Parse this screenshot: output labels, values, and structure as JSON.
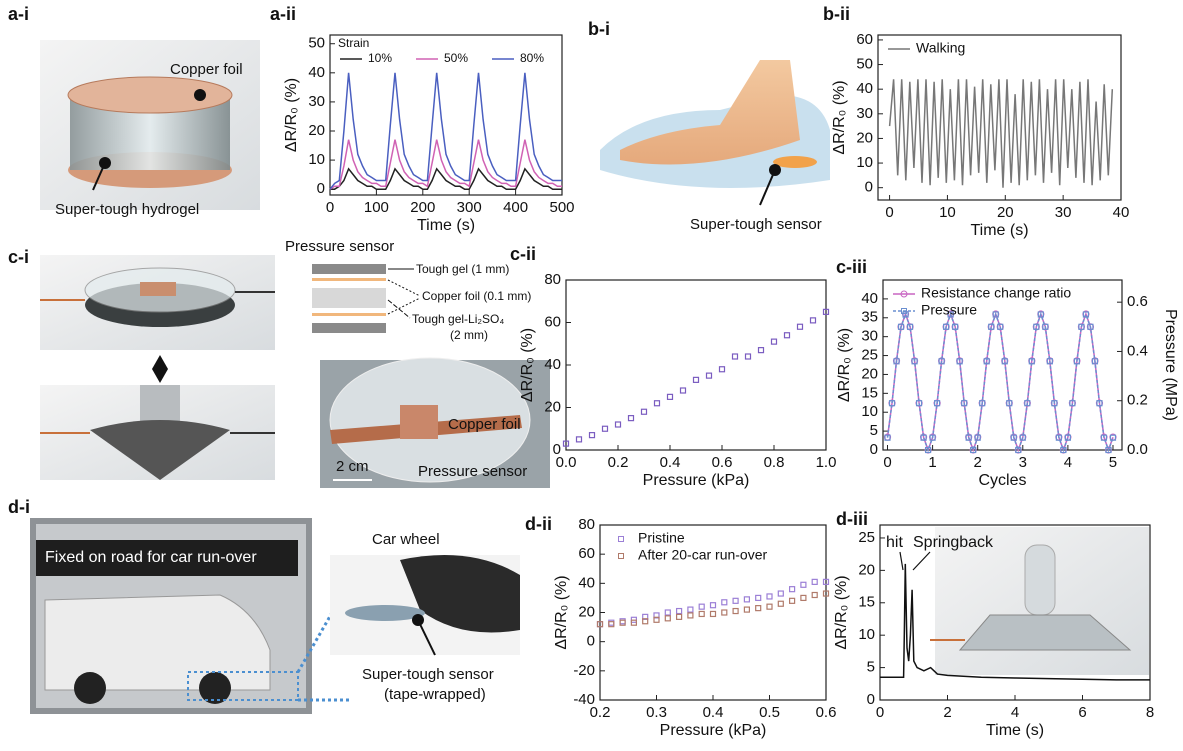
{
  "chart_data": [
    {
      "type": "line",
      "panel": "a-ii",
      "xlabel": "Time (s)",
      "ylabel": "ΔR/R₀ (%)",
      "legend_title": "Strain",
      "legend": "upper left",
      "xlim": [
        0,
        500
      ],
      "ylim": [
        -2,
        53
      ],
      "xticks": [
        0,
        100,
        200,
        300,
        400,
        500
      ],
      "yticks": [
        0,
        10,
        20,
        30,
        40,
        50
      ],
      "x": [
        0,
        10,
        20,
        30,
        40,
        50,
        60,
        70,
        80,
        90,
        100,
        110,
        120,
        130,
        140,
        150,
        160,
        170,
        180,
        190,
        200,
        210,
        220,
        230,
        240,
        250,
        260,
        270,
        280,
        290,
        300,
        310,
        320,
        330,
        340,
        350,
        360,
        370,
        380,
        390,
        400,
        410,
        420,
        430,
        440,
        450,
        460,
        470,
        480,
        490,
        500
      ],
      "series": [
        {
          "name": "10%",
          "color": "#222222",
          "values": [
            0,
            0,
            1,
            3,
            7,
            5,
            3,
            2,
            1,
            1,
            0,
            0,
            0,
            3,
            7,
            5,
            3,
            2,
            1,
            1,
            0,
            0,
            3,
            7,
            5,
            3,
            2,
            1,
            1,
            0,
            0,
            3,
            7,
            5,
            3,
            2,
            1,
            1,
            0,
            0,
            0,
            3,
            7,
            5,
            3,
            2,
            1,
            1,
            0,
            0,
            0
          ]
        },
        {
          "name": "50%",
          "color": "#d062b4",
          "values": [
            0,
            1,
            1,
            8,
            17,
            10,
            6,
            4,
            3,
            2,
            2,
            1,
            1,
            9,
            17,
            10,
            6,
            4,
            3,
            2,
            2,
            1,
            9,
            17,
            10,
            6,
            4,
            3,
            2,
            2,
            1,
            9,
            17,
            10,
            6,
            4,
            3,
            2,
            2,
            1,
            1,
            9,
            17,
            10,
            6,
            4,
            3,
            2,
            2,
            1,
            1
          ]
        },
        {
          "name": "80%",
          "color": "#4a5fc0",
          "values": [
            0,
            2,
            3,
            20,
            40,
            24,
            12,
            8,
            5,
            4,
            3,
            3,
            3,
            22,
            40,
            24,
            12,
            8,
            5,
            4,
            3,
            3,
            22,
            40,
            24,
            12,
            8,
            5,
            4,
            3,
            3,
            22,
            40,
            24,
            12,
            8,
            5,
            4,
            3,
            3,
            3,
            22,
            40,
            24,
            12,
            8,
            5,
            4,
            3,
            3,
            3
          ]
        }
      ]
    },
    {
      "type": "line",
      "panel": "b-ii",
      "xlabel": "Time (s)",
      "ylabel": "ΔR/R₀ (%)",
      "legend": "upper left",
      "xlim": [
        -2,
        40
      ],
      "ylim": [
        -5,
        62
      ],
      "xticks": [
        0,
        10,
        20,
        30,
        40
      ],
      "yticks": [
        0,
        10,
        20,
        30,
        40,
        50,
        60
      ],
      "x": [
        0,
        0.7,
        1.4,
        2.1,
        2.8,
        3.5,
        4.2,
        4.9,
        5.6,
        6.3,
        7,
        7.7,
        8.4,
        9.1,
        9.8,
        10.5,
        11.2,
        11.9,
        12.6,
        13.3,
        14,
        14.7,
        15.4,
        16.1,
        16.8,
        17.5,
        18.2,
        18.9,
        19.6,
        20.3,
        21,
        21.7,
        22.4,
        23.1,
        23.8,
        24.5,
        25.2,
        25.9,
        26.6,
        27.3,
        28,
        28.7,
        29.4,
        30.1,
        30.8,
        31.5,
        32.2,
        32.9,
        33.6,
        34.3,
        35,
        35.7,
        36.4,
        37.1,
        37.8,
        38.5
      ],
      "series": [
        {
          "name": "Walking",
          "color": "#777777",
          "values": [
            25,
            44,
            5,
            44,
            3,
            43,
            8,
            44,
            2,
            44,
            1,
            43,
            4,
            44,
            2,
            40,
            3,
            44,
            1,
            44,
            5,
            41,
            6,
            44,
            2,
            42,
            7,
            44,
            0,
            44,
            2,
            38,
            1,
            44,
            3,
            43,
            5,
            44,
            2,
            40,
            6,
            44,
            1,
            44,
            8,
            40,
            4,
            43,
            2,
            44,
            1,
            35,
            3,
            42,
            5,
            40
          ]
        }
      ]
    },
    {
      "type": "scatter",
      "panel": "c-ii",
      "xlabel": "Pressure (kPa)",
      "ylabel": "ΔR/R₀ (%)",
      "marker": "square",
      "xlim": [
        0,
        1
      ],
      "ylim": [
        0,
        80
      ],
      "xticks": [
        {
          "value": 0,
          "label": "0.0"
        },
        0.2,
        0.4,
        0.6,
        0.8,
        {
          "value": 1,
          "label": "1.0"
        }
      ],
      "yticks": [
        0,
        20,
        40,
        60,
        80
      ],
      "x": [
        0,
        0.05,
        0.1,
        0.15,
        0.2,
        0.25,
        0.3,
        0.35,
        0.4,
        0.45,
        0.5,
        0.55,
        0.6,
        0.65,
        0.7,
        0.75,
        0.8,
        0.85,
        0.9,
        0.95,
        1
      ],
      "series": [
        {
          "color": "#7a5cc0",
          "values": [
            3,
            5,
            7,
            10,
            12,
            15,
            18,
            22,
            25,
            28,
            33,
            35,
            38,
            44,
            44,
            47,
            51,
            54,
            58,
            61,
            65
          ]
        }
      ]
    },
    {
      "type": "line",
      "panel": "c-iii",
      "xlabel": "Cycles",
      "ylabel": "ΔR/R₀ (%)",
      "y2label": "Pressure (MPa)",
      "legend": "upper left",
      "xlim": [
        -0.1,
        5.2
      ],
      "ylim": [
        0,
        45
      ],
      "y2lim": [
        0,
        0.69
      ],
      "xticks": [
        0,
        1,
        2,
        3,
        4,
        5
      ],
      "yticks": [
        0,
        5,
        10,
        15,
        20,
        25,
        30,
        35,
        40
      ],
      "y2ticks": [
        {
          "value": 0,
          "label": "0.0"
        },
        0.2,
        0.4,
        0.6
      ],
      "x": [
        0,
        0.1,
        0.2,
        0.3,
        0.4,
        0.5,
        0.6,
        0.7,
        0.8,
        0.9,
        1,
        1.1,
        1.2,
        1.3,
        1.4,
        1.5,
        1.6,
        1.7,
        1.8,
        1.9,
        2,
        2.1,
        2.2,
        2.3,
        2.4,
        2.5,
        2.6,
        2.7,
        2.8,
        2.9,
        3,
        3.1,
        3.2,
        3.3,
        3.4,
        3.5,
        3.6,
        3.7,
        3.8,
        3.9,
        4,
        4.1,
        4.2,
        4.3,
        4.4,
        4.5,
        4.6,
        4.7,
        4.8,
        4.9,
        5
      ],
      "series": [
        {
          "name": "Resistance change ratio",
          "color": "#c865c2",
          "marker": "circle",
          "values": [
            3.4,
            12.4,
            23.6,
            32.6,
            36,
            32.6,
            23.6,
            12.4,
            3.4,
            0,
            3.4,
            12.4,
            23.6,
            32.6,
            36,
            32.6,
            23.6,
            12.4,
            3.4,
            0,
            3.4,
            12.4,
            23.6,
            32.6,
            36,
            32.6,
            23.6,
            12.4,
            3.4,
            0,
            3.4,
            12.4,
            23.6,
            32.6,
            36,
            32.6,
            23.6,
            12.4,
            3.4,
            0,
            3.4,
            12.4,
            23.6,
            32.6,
            36,
            32.6,
            23.6,
            12.4,
            3.4,
            0,
            3.4
          ]
        },
        {
          "name": "Pressure",
          "color": "#6a8fd0",
          "marker": "square",
          "dashed": true,
          "axis": "y2",
          "values": [
            0.05,
            0.19,
            0.36,
            0.5,
            0.55,
            0.5,
            0.36,
            0.19,
            0.05,
            0,
            0.05,
            0.19,
            0.36,
            0.5,
            0.55,
            0.5,
            0.36,
            0.19,
            0.05,
            0,
            0.05,
            0.19,
            0.36,
            0.5,
            0.55,
            0.5,
            0.36,
            0.19,
            0.05,
            0,
            0.05,
            0.19,
            0.36,
            0.5,
            0.55,
            0.5,
            0.36,
            0.19,
            0.05,
            0,
            0.05,
            0.19,
            0.36,
            0.5,
            0.55,
            0.5,
            0.36,
            0.19,
            0.05,
            0,
            0.05
          ]
        }
      ]
    },
    {
      "type": "scatter",
      "panel": "d-ii",
      "xlabel": "Pressure (kPa)",
      "ylabel": "ΔR/R₀ (%)",
      "marker": "square",
      "legend": "upper left",
      "xlim": [
        0.2,
        0.6
      ],
      "ylim": [
        -40,
        80
      ],
      "xticks": [
        0.2,
        0.3,
        0.4,
        0.5,
        0.6
      ],
      "yticks": [
        -40,
        -20,
        0,
        20,
        40,
        60,
        80
      ],
      "x": [
        0.2,
        0.22,
        0.24,
        0.26,
        0.28,
        0.3,
        0.32,
        0.34,
        0.36,
        0.38,
        0.4,
        0.42,
        0.44,
        0.46,
        0.48,
        0.5,
        0.52,
        0.54,
        0.56,
        0.58,
        0.6
      ],
      "series": [
        {
          "name": "Pristine",
          "color": "#9b7fd6",
          "values": [
            12,
            13,
            14,
            15,
            17,
            18,
            20,
            21,
            22,
            24,
            25,
            27,
            28,
            29,
            30,
            31,
            33,
            36,
            39,
            41,
            41
          ]
        },
        {
          "name": "After 20-car run-over",
          "color": "#b07a6a",
          "values": [
            12,
            12,
            13,
            13,
            14,
            15,
            16,
            17,
            18,
            19,
            19,
            20,
            21,
            22,
            23,
            24,
            26,
            28,
            30,
            32,
            33
          ]
        }
      ]
    },
    {
      "type": "line",
      "panel": "d-iii",
      "xlabel": "Time (s)",
      "ylabel": "ΔR/R₀ (%)",
      "annotations": [
        "hit",
        "Springback"
      ],
      "xlim": [
        0,
        8
      ],
      "ylim": [
        0,
        27
      ],
      "xticks": [
        0,
        2,
        4,
        6,
        8
      ],
      "yticks": [
        0,
        5,
        10,
        15,
        20,
        25
      ],
      "x": [
        0,
        0.7,
        0.72,
        0.75,
        0.8,
        0.85,
        0.9,
        0.95,
        1,
        1.1,
        1.3,
        1.5,
        1.6,
        1.7,
        2,
        3,
        4,
        5,
        6,
        7,
        8
      ],
      "series": [
        {
          "color": "#111111",
          "values": [
            3.5,
            3.5,
            10,
            21,
            8,
            6,
            10,
            17,
            6,
            5,
            4.5,
            5,
            4.5,
            4,
            3.8,
            3.5,
            3.4,
            3.3,
            3.2,
            3.1,
            3.1
          ]
        }
      ]
    }
  ],
  "illustrations": {
    "a_i": {
      "panel": "a-i",
      "top": "Copper foil",
      "bottom": "Super-tough hydrogel"
    },
    "b_i": {
      "panel": "b-i",
      "label": "Super-tough sensor"
    },
    "c_i": {
      "panel": "c-i",
      "title": "Pressure sensor",
      "layer1": "Tough gel (1 mm)",
      "layer2": "Copper foil (0.1 mm)",
      "layer3": "Tough gel-Li₂SO₄",
      "layer3b": "(2 mm)",
      "photo_foil": "Copper foil",
      "scale": "2 cm",
      "photo_sensor": "Pressure sensor"
    },
    "d_i": {
      "panel": "d-i",
      "banner": "Fixed on road for car run-over",
      "wheel": "Car wheel",
      "sensor": "Super-tough sensor",
      "sensor2": "(tape-wrapped)"
    }
  }
}
